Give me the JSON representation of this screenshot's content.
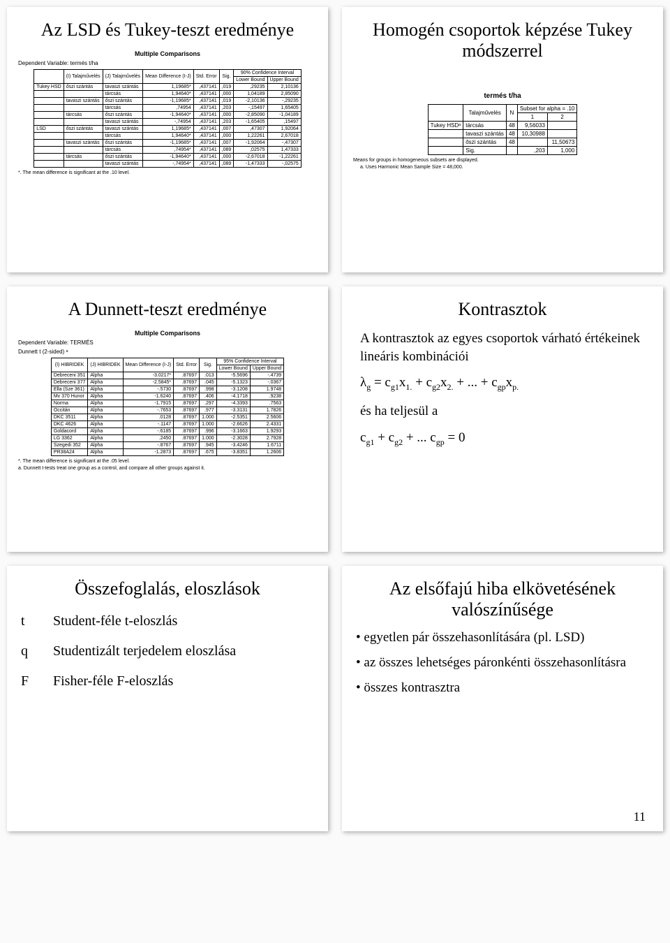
{
  "panel1": {
    "title": "Az LSD és Tukey-teszt eredménye",
    "subtitle": "Multiple Comparisons",
    "dep": "Dependent Variable: termés t/ha",
    "headers": [
      "(I) Talajművelés",
      "(J) Talajművelés",
      "Mean Difference (I-J)",
      "Std. Error",
      "Sig.",
      "Lower Bound",
      "Upper Bound"
    ],
    "ci": "90% Confidence Interval",
    "rows": [
      [
        "Tukey HSD",
        "őszi szántás",
        "tavaszi szántás",
        "1,19685*",
        ",437141",
        ",019",
        ",29235",
        "2,10136"
      ],
      [
        "",
        "",
        "tárcsás",
        "1,94640*",
        ",437141",
        ",000",
        "1,04189",
        "2,85090"
      ],
      [
        "",
        "tavaszi szántás",
        "őszi szántás",
        "-1,19685*",
        ",437141",
        ",019",
        "-2,10136",
        "-,29235"
      ],
      [
        "",
        "",
        "tárcsás",
        ",74954",
        ",437141",
        ",203",
        "-,15497",
        "1,65405"
      ],
      [
        "",
        "tárcsás",
        "őszi szántás",
        "-1,94640*",
        ",437141",
        ",000",
        "-2,85090",
        "-1,04189"
      ],
      [
        "",
        "",
        "tavaszi szántás",
        "-,74954",
        ",437141",
        ",203",
        "-1,65405",
        ",15497"
      ],
      [
        "LSD",
        "őszi szántás",
        "tavaszi szántás",
        "1,19685*",
        ",437141",
        ",007",
        ",47307",
        "1,92064"
      ],
      [
        "",
        "",
        "tárcsás",
        "1,94640*",
        ",437141",
        ",000",
        "1,22261",
        "2,67018"
      ],
      [
        "",
        "tavaszi szántás",
        "őszi szántás",
        "-1,19685*",
        ",437141",
        ",007",
        "-1,92064",
        "-,47307"
      ],
      [
        "",
        "",
        "tárcsás",
        ",74954*",
        ",437141",
        ",089",
        ",02575",
        "1,47333"
      ],
      [
        "",
        "tárcsás",
        "őszi szántás",
        "-1,94640*",
        ",437141",
        ",000",
        "-2,67018",
        "-1,22261"
      ],
      [
        "",
        "",
        "tavaszi szántás",
        "-,74954*",
        ",437141",
        ",089",
        "-1,47333",
        "-,02575"
      ]
    ],
    "foot": "*. The mean difference is significant at the .10 level."
  },
  "panel2": {
    "title": "Homogén csoportok képzése Tukey módszerrel",
    "subtitle": "termés t/ha",
    "subset": "Subset for alpha = .10",
    "headers": [
      "",
      "Talajművelés",
      "N",
      "1",
      "2"
    ],
    "rows": [
      [
        "Tukey HSDᵃ",
        "tárcsás",
        "48",
        "9,56033",
        ""
      ],
      [
        "",
        "tavaszi szántás",
        "48",
        "10,30988",
        ""
      ],
      [
        "",
        "őszi szántás",
        "48",
        "",
        "11,50673"
      ],
      [
        "",
        "Sig.",
        "",
        ",203",
        "1,000"
      ]
    ],
    "foot1": "Means for groups in homogeneous subsets are displayed.",
    "foot2": "a. Uses Harmonic Mean Sample Size = 48,000."
  },
  "panel3": {
    "title": "A Dunnett-teszt eredménye",
    "subtitle": "Multiple Comparisons",
    "dep1": "Dependent Variable: TERMÉS",
    "dep2": "Dunnett t (2-sided) ᵃ",
    "ci": "95% Confidence Interval",
    "headers": [
      "(I) HIBRIDEK",
      "(J) HIBRIDEK",
      "Mean Difference (I-J)",
      "Std. Error",
      "Sig.",
      "Lower Bound",
      "Upper Bound"
    ],
    "rows": [
      [
        "Debreceni 351",
        "Alpha",
        "-3.0217*",
        ".87697",
        ".013",
        "-5.5696",
        "-.4739"
      ],
      [
        "Debreceni 377",
        "Alpha",
        "-2.5845*",
        ".87697",
        ".045",
        "-5.1323",
        "-.0367"
      ],
      [
        "Ella (Sze 361)",
        "Alpha",
        "-.5730",
        ".87697",
        ".998",
        "-3.1208",
        "1.9748"
      ],
      [
        "Mv 370 Hunor",
        "Alpha",
        "-1.6240",
        ".87697",
        ".406",
        "-4.1718",
        ".9238"
      ],
      [
        "Norma",
        "Alpha",
        "-1.7915",
        ".87697",
        ".297",
        "-4.3393",
        ".7563"
      ],
      [
        "Occitán",
        "Alpha",
        "-.7653",
        ".87697",
        ".977",
        "-3.3131",
        "1.7826"
      ],
      [
        "DKC 3511",
        "Alpha",
        ".0128",
        ".87697",
        "1.000",
        "-2.5351",
        "2.5606"
      ],
      [
        "DKC 4626",
        "Alpha",
        "-.1147",
        ".87697",
        "1.000",
        "-2.6626",
        "2.4331"
      ],
      [
        "Goldacord",
        "Alpha",
        "-.6185",
        ".87697",
        ".996",
        "-3.1663",
        "1.9293"
      ],
      [
        "LG 3362",
        "Alpha",
        ".2450",
        ".87697",
        "1.000",
        "-2.3028",
        "2.7928"
      ],
      [
        "Szegedi 352",
        "Alpha",
        "-.8767",
        ".87697",
        ".945",
        "-3.4246",
        "1.6711"
      ],
      [
        "PR38A24",
        "Alpha",
        "-1.2873",
        ".87697",
        ".675",
        "-3.8351",
        "1.2606"
      ]
    ],
    "foot1": "*. The mean difference is significant at the .05 level.",
    "foot2": "a. Dunnett t-tests treat one group as a control, and compare all other groups against it."
  },
  "panel4": {
    "title": "Kontrasztok",
    "text1": "A kontrasztok az egyes csoportok várható értékeinek lineáris kombinációi",
    "formula1": "λg = cg1x1. + cg2x2. + ... + cgpxp.",
    "text2": "és ha teljesül a",
    "formula2": "cg1 + cg2 + ... cgp = 0"
  },
  "panel5": {
    "title": "Összefoglalás, eloszlások",
    "items": [
      [
        "t",
        "Student-féle t-eloszlás"
      ],
      [
        "q",
        "Studentizált terjedelem eloszlása"
      ],
      [
        "F",
        "Fisher-féle F-eloszlás"
      ]
    ]
  },
  "panel6": {
    "title": "Az elsőfajú hiba elkövetésének valószínűsége",
    "bullets": [
      "egyetlen pár összehasonlítására (pl. LSD)",
      "az összes lehetséges páronkénti összehasonlításra",
      "összes kontrasztra"
    ]
  },
  "pagenum": "11"
}
